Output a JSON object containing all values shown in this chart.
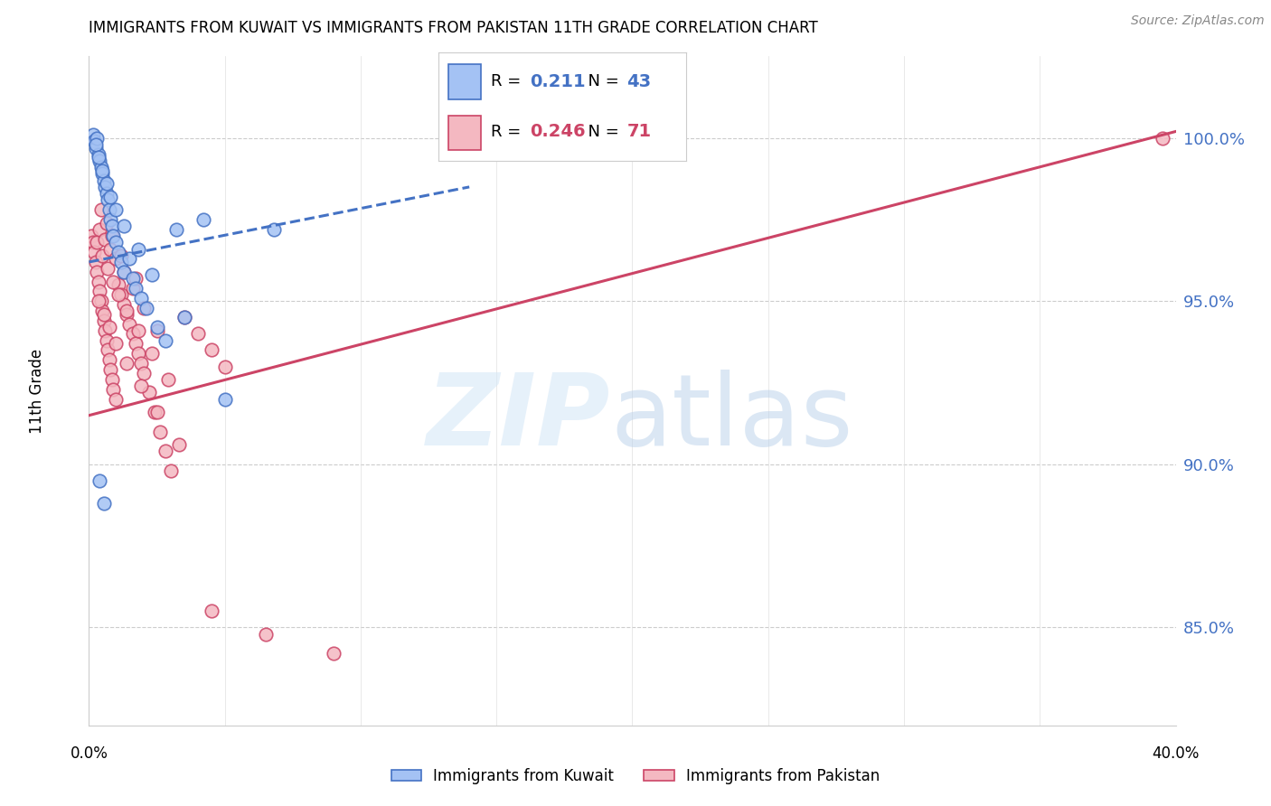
{
  "title": "IMMIGRANTS FROM KUWAIT VS IMMIGRANTS FROM PAKISTAN 11TH GRADE CORRELATION CHART",
  "source": "Source: ZipAtlas.com",
  "ylabel": "11th Grade",
  "ylabel_right_ticks": [
    85.0,
    90.0,
    95.0,
    100.0
  ],
  "ylabel_right_labels": [
    "85.0%",
    "90.0%",
    "95.0%",
    "100.0%"
  ],
  "xmin": 0.0,
  "xmax": 40.0,
  "ymin": 82.0,
  "ymax": 102.5,
  "legend_blue_r": "0.211",
  "legend_blue_n": "43",
  "legend_pink_r": "0.246",
  "legend_pink_n": "71",
  "blue_color": "#a4c2f4",
  "pink_color": "#f4b8c1",
  "blue_line_color": "#4472c4",
  "pink_line_color": "#cc4466",
  "blue_trend_x": [
    0.0,
    14.0
  ],
  "blue_trend_y": [
    96.2,
    98.5
  ],
  "pink_trend_x": [
    0.0,
    40.0
  ],
  "pink_trend_y": [
    91.5,
    100.2
  ],
  "kuwait_x": [
    0.15,
    0.2,
    0.25,
    0.3,
    0.35,
    0.4,
    0.45,
    0.5,
    0.55,
    0.6,
    0.65,
    0.7,
    0.75,
    0.8,
    0.85,
    0.9,
    1.0,
    1.1,
    1.2,
    1.3,
    1.5,
    1.6,
    1.7,
    1.9,
    2.1,
    2.5,
    2.8,
    3.2,
    4.2,
    6.8,
    0.25,
    0.35,
    0.5,
    0.65,
    0.8,
    1.0,
    1.3,
    1.8,
    2.3,
    3.5,
    5.0,
    0.4,
    0.55
  ],
  "kuwait_y": [
    100.1,
    99.9,
    99.7,
    100.0,
    99.5,
    99.3,
    99.1,
    98.9,
    98.7,
    98.5,
    98.3,
    98.1,
    97.8,
    97.5,
    97.3,
    97.0,
    96.8,
    96.5,
    96.2,
    95.9,
    96.3,
    95.7,
    95.4,
    95.1,
    94.8,
    94.2,
    93.8,
    97.2,
    97.5,
    97.2,
    99.8,
    99.4,
    99.0,
    98.6,
    98.2,
    97.8,
    97.3,
    96.6,
    95.8,
    94.5,
    92.0,
    89.5,
    88.8
  ],
  "pakistan_x": [
    0.1,
    0.15,
    0.2,
    0.25,
    0.3,
    0.35,
    0.4,
    0.45,
    0.5,
    0.55,
    0.6,
    0.65,
    0.7,
    0.75,
    0.8,
    0.85,
    0.9,
    1.0,
    1.1,
    1.2,
    1.3,
    1.4,
    1.5,
    1.6,
    1.7,
    1.8,
    1.9,
    2.0,
    2.2,
    2.4,
    2.6,
    2.8,
    3.0,
    3.5,
    4.0,
    4.5,
    5.0,
    0.3,
    0.5,
    0.7,
    0.9,
    1.1,
    1.4,
    1.8,
    2.3,
    2.9,
    0.4,
    0.6,
    0.8,
    1.0,
    1.3,
    1.6,
    2.0,
    2.5,
    0.35,
    0.55,
    0.75,
    1.0,
    1.4,
    1.9,
    2.5,
    3.3,
    4.5,
    6.5,
    9.0,
    39.5,
    0.45,
    0.65,
    0.85,
    1.2,
    1.7
  ],
  "pakistan_y": [
    97.0,
    96.8,
    96.5,
    96.2,
    95.9,
    95.6,
    95.3,
    95.0,
    94.7,
    94.4,
    94.1,
    93.8,
    93.5,
    93.2,
    92.9,
    92.6,
    92.3,
    92.0,
    95.5,
    95.2,
    94.9,
    94.6,
    94.3,
    94.0,
    93.7,
    93.4,
    93.1,
    92.8,
    92.2,
    91.6,
    91.0,
    90.4,
    89.8,
    94.5,
    94.0,
    93.5,
    93.0,
    96.8,
    96.4,
    96.0,
    95.6,
    95.2,
    94.7,
    94.1,
    93.4,
    92.6,
    97.2,
    96.9,
    96.6,
    96.3,
    95.9,
    95.4,
    94.8,
    94.1,
    95.0,
    94.6,
    94.2,
    93.7,
    93.1,
    92.4,
    91.6,
    90.6,
    85.5,
    84.8,
    84.2,
    100.0,
    97.8,
    97.4,
    97.0,
    96.4,
    95.7
  ]
}
